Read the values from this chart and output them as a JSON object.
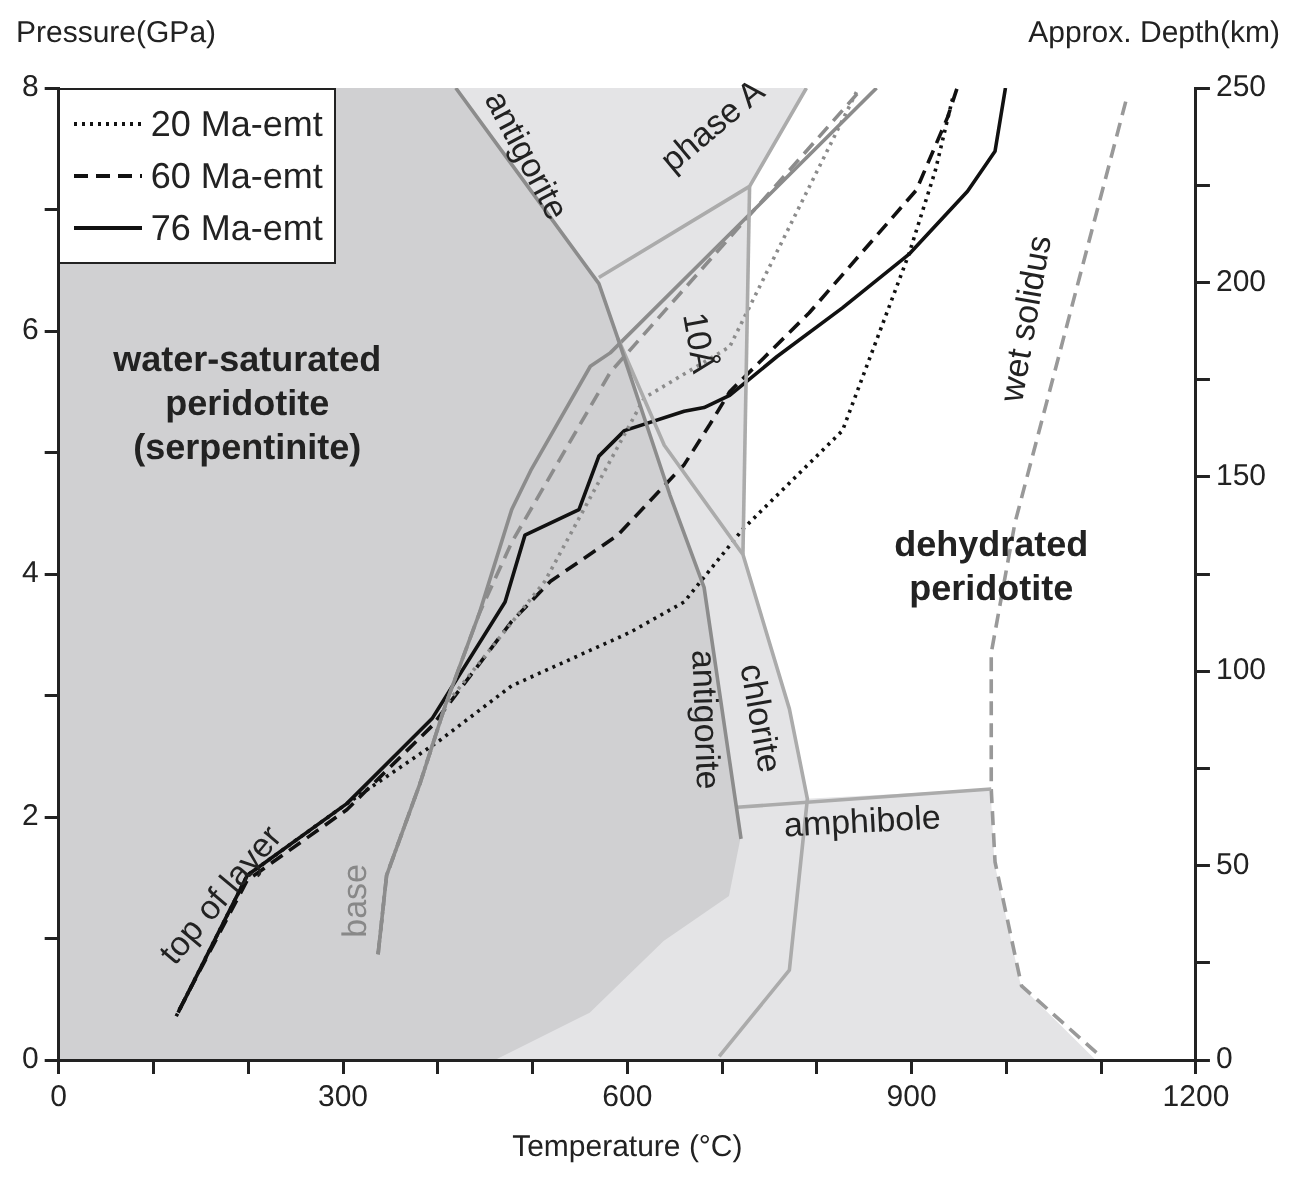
{
  "chart_data": {
    "type": "line",
    "xlabel": "Temperature (°C)",
    "ylabel": "Pressure(GPa)",
    "y2label": "Approx. Depth(km)",
    "xlim": [
      0,
      1200
    ],
    "xticks": [
      0,
      {
        "value": 100,
        "label": null
      },
      {
        "value": 200,
        "label": null
      },
      300,
      {
        "value": 400,
        "label": null
      },
      {
        "value": 500,
        "label": null
      },
      600,
      {
        "value": 700,
        "label": null
      },
      {
        "value": 800,
        "label": null
      },
      900,
      {
        "value": 1000,
        "label": null
      },
      {
        "value": 1100,
        "label": null
      },
      1200
    ],
    "ylim": [
      0,
      8
    ],
    "yticks": [
      0,
      {
        "value": 1,
        "label": null
      },
      2,
      {
        "value": 3,
        "label": null
      },
      4,
      {
        "value": 5,
        "label": null
      },
      6,
      {
        "value": 7,
        "label": null
      },
      8
    ],
    "y2lim": [
      0,
      250
    ],
    "y2ticks": [
      0,
      {
        "value": 25,
        "label": null
      },
      50,
      {
        "value": 75,
        "label": null
      },
      100,
      {
        "value": 125,
        "label": null
      },
      150,
      {
        "value": 175,
        "label": null
      },
      200,
      {
        "value": 225,
        "label": null
      },
      250
    ],
    "grid": false,
    "legend": "top left",
    "marker": "none",
    "series": [
      {
        "type": "line",
        "color": "#8c8c8c",
        "line_style": "solid",
        "x": [
          419,
          570,
          590,
          645,
          681,
          720
        ],
        "values": [
          8,
          6.39,
          5.94,
          4.65,
          3.89,
          1.82
        ]
      },
      {
        "type": "line",
        "color": "#ababab",
        "line_style": "solid",
        "x": [
          570,
          729,
          789
        ],
        "values": [
          6.44,
          7.19,
          8
        ]
      },
      {
        "type": "line",
        "color": "#ababab",
        "line_style": "solid",
        "x": [
          729,
          722
        ],
        "values": [
          7.19,
          4.16
        ]
      },
      {
        "type": "line",
        "color": "#ababab",
        "line_style": "solid",
        "x": [
          590,
          639,
          722,
          771,
          790,
          771,
          697
        ],
        "values": [
          5.94,
          5.06,
          4.16,
          2.89,
          2.15,
          0.74,
          0.03
        ]
      },
      {
        "type": "line",
        "color": "#ababab",
        "line_style": "solid",
        "x": [
          716,
          984
        ],
        "values": [
          2.08,
          2.23
        ]
      },
      {
        "type": "line",
        "color": "#999999",
        "line_style": "dashed",
        "x": [
          1095,
          1016,
          988,
          984,
          984,
          1009,
          1127
        ],
        "values": [
          0.06,
          0.61,
          1.63,
          2.23,
          3.35,
          4.42,
          7.92
        ]
      },
      {
        "type": "line",
        "color": "#8c8c8c",
        "line_style": "solid",
        "x": [
          337,
          346,
          381,
          408,
          444,
          478,
          498,
          561,
          582,
          863
        ],
        "values": [
          0.87,
          1.52,
          2.27,
          2.92,
          3.68,
          4.53,
          4.85,
          5.71,
          5.82,
          8
        ]
      },
      {
        "type": "line",
        "color": "#8c8c8c",
        "line_style": "dashed",
        "x": [
          337,
          346,
          381,
          408,
          444,
          478,
          582,
          848
        ],
        "values": [
          0.87,
          1.52,
          2.27,
          2.92,
          3.68,
          4.26,
          5.66,
          8
        ]
      },
      {
        "type": "line",
        "color": "#8c8c8c",
        "line_style": "dotted",
        "x": [
          337,
          346,
          381,
          408,
          513,
          618,
          708,
          842
        ],
        "values": [
          0.87,
          1.52,
          2.27,
          2.92,
          3.94,
          5.45,
          5.87,
          7.97
        ]
      },
      {
        "name": "20 Ma-emt",
        "type": "line",
        "color": "#111111",
        "line_style": "dotted",
        "x": [
          124,
          199,
          304,
          402,
          478,
          603,
          660,
          722,
          827,
          897,
          925,
          944
        ],
        "values": [
          0.36,
          1.52,
          2.11,
          2.63,
          3.08,
          3.52,
          3.77,
          4.37,
          5.18,
          6.63,
          7.32,
          7.94
        ]
      },
      {
        "name": "60 Ma-emt",
        "type": "line",
        "color": "#111111",
        "line_style": "dashed",
        "x": [
          127,
          199,
          304,
          394,
          478,
          519,
          590,
          660,
          687,
          708,
          792,
          905,
          938,
          948
        ],
        "values": [
          0.41,
          1.48,
          2.06,
          2.75,
          3.61,
          3.94,
          4.32,
          4.9,
          5.23,
          5.5,
          6.15,
          7.16,
          7.76,
          8
        ]
      },
      {
        "name": "76 Ma-emt",
        "type": "line",
        "color": "#111111",
        "line_style": "solid",
        "x": [
          126,
          199,
          304,
          394,
          471,
          492,
          549,
          570,
          597,
          660,
          681,
          708,
          758,
          827,
          897,
          959,
          988,
          999
        ],
        "values": [
          0.39,
          1.52,
          2.11,
          2.81,
          3.77,
          4.32,
          4.53,
          4.97,
          5.18,
          5.34,
          5.37,
          5.47,
          5.79,
          6.19,
          6.63,
          7.15,
          7.48,
          8
        ]
      }
    ],
    "annotations": [
      "antigorite",
      "phase A",
      "10Å",
      "water-saturated\nperidotite\n(serpentinite)",
      "antigorite",
      "chlorite",
      "amphibole",
      "wet solidus",
      "dehydrated\nperidotite",
      "top of layer",
      "base"
    ]
  }
}
